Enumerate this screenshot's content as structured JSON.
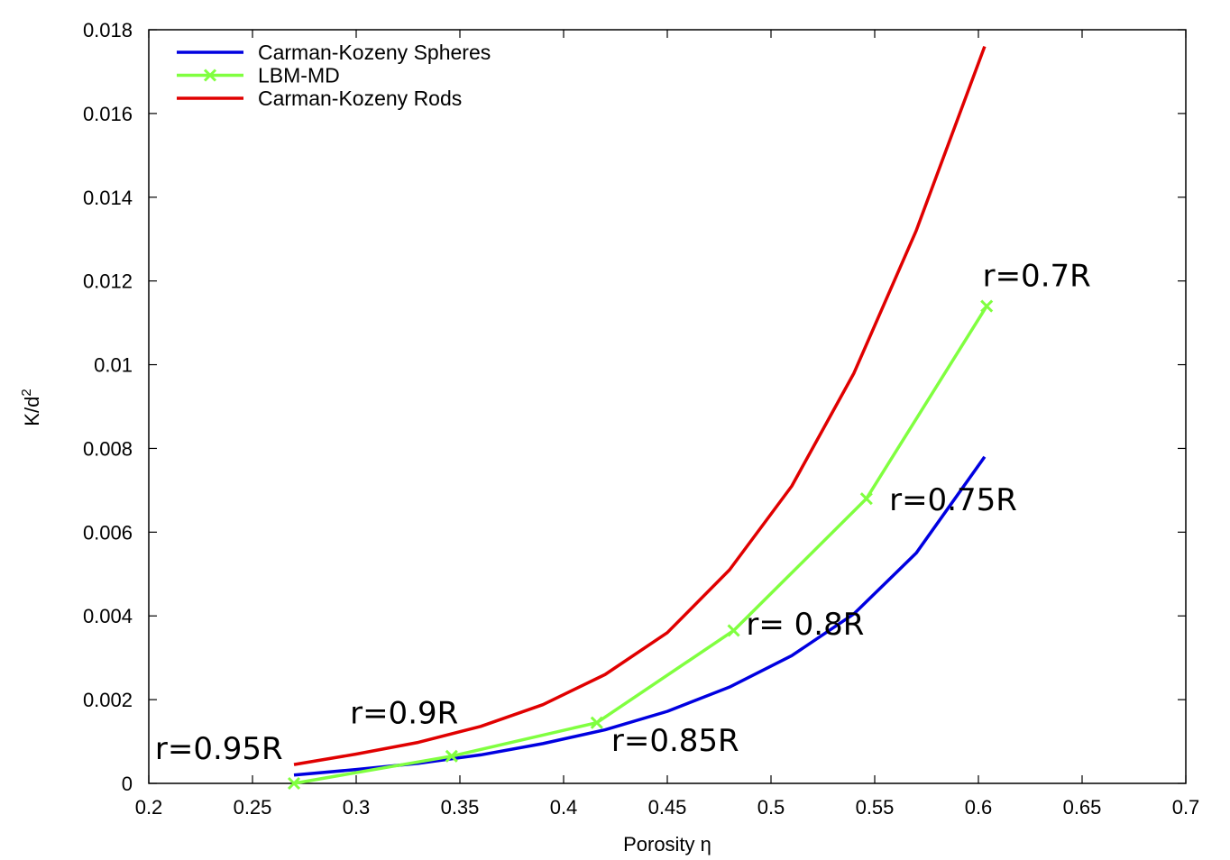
{
  "chart_data": {
    "type": "line",
    "title": "",
    "xlabel": "Porosity η",
    "ylabel": "K/d",
    "ylabel_superscript": "2",
    "xlim": [
      0.2,
      0.7
    ],
    "ylim": [
      0,
      0.018
    ],
    "xticks": [
      "0.2",
      "0.25",
      "0.3",
      "0.35",
      "0.4",
      "0.45",
      "0.5",
      "0.55",
      "0.6",
      "0.65",
      "0.7"
    ],
    "yticks": [
      "0",
      "0.002",
      "0.004",
      "0.006",
      "0.008",
      "0.01",
      "0.012",
      "0.014",
      "0.016",
      "0.018"
    ],
    "grid": false,
    "legend_position": "top-left",
    "series": [
      {
        "name": "Carman-Kozeny Spheres",
        "color": "#0000e0",
        "markers": false,
        "x": [
          0.27,
          0.3,
          0.33,
          0.36,
          0.39,
          0.42,
          0.45,
          0.48,
          0.51,
          0.54,
          0.57,
          0.603
        ],
        "y": [
          0.0002,
          0.00033,
          0.00048,
          0.00068,
          0.00095,
          0.00128,
          0.00172,
          0.0023,
          0.00305,
          0.00405,
          0.0055,
          0.0078
        ]
      },
      {
        "name": "LBM-MD",
        "color": "#80ff40",
        "markers": true,
        "x": [
          0.27,
          0.346,
          0.416,
          0.482,
          0.546,
          0.604
        ],
        "y": [
          0.0,
          0.00065,
          0.00145,
          0.00365,
          0.0068,
          0.0114
        ]
      },
      {
        "name": "Carman-Kozeny Rods",
        "color": "#e00000",
        "markers": false,
        "x": [
          0.27,
          0.3,
          0.33,
          0.36,
          0.39,
          0.42,
          0.45,
          0.48,
          0.51,
          0.54,
          0.57,
          0.603
        ],
        "y": [
          0.00045,
          0.0007,
          0.00098,
          0.00136,
          0.00188,
          0.0026,
          0.0036,
          0.0051,
          0.0071,
          0.0098,
          0.0132,
          0.0176
        ]
      }
    ],
    "annotations": [
      {
        "text": "r=0.95R",
        "x": 0.203,
        "y": 0.00058
      },
      {
        "text": "r=0.9R",
        "x": 0.297,
        "y": 0.00143
      },
      {
        "text": "r=0.85R",
        "x": 0.423,
        "y": 0.00078
      },
      {
        "text": "r= 0.8R",
        "x": 0.488,
        "y": 0.00355
      },
      {
        "text": "r=0.75R",
        "x": 0.557,
        "y": 0.00652
      },
      {
        "text": "r=0.7R",
        "x": 0.602,
        "y": 0.01187
      }
    ]
  }
}
